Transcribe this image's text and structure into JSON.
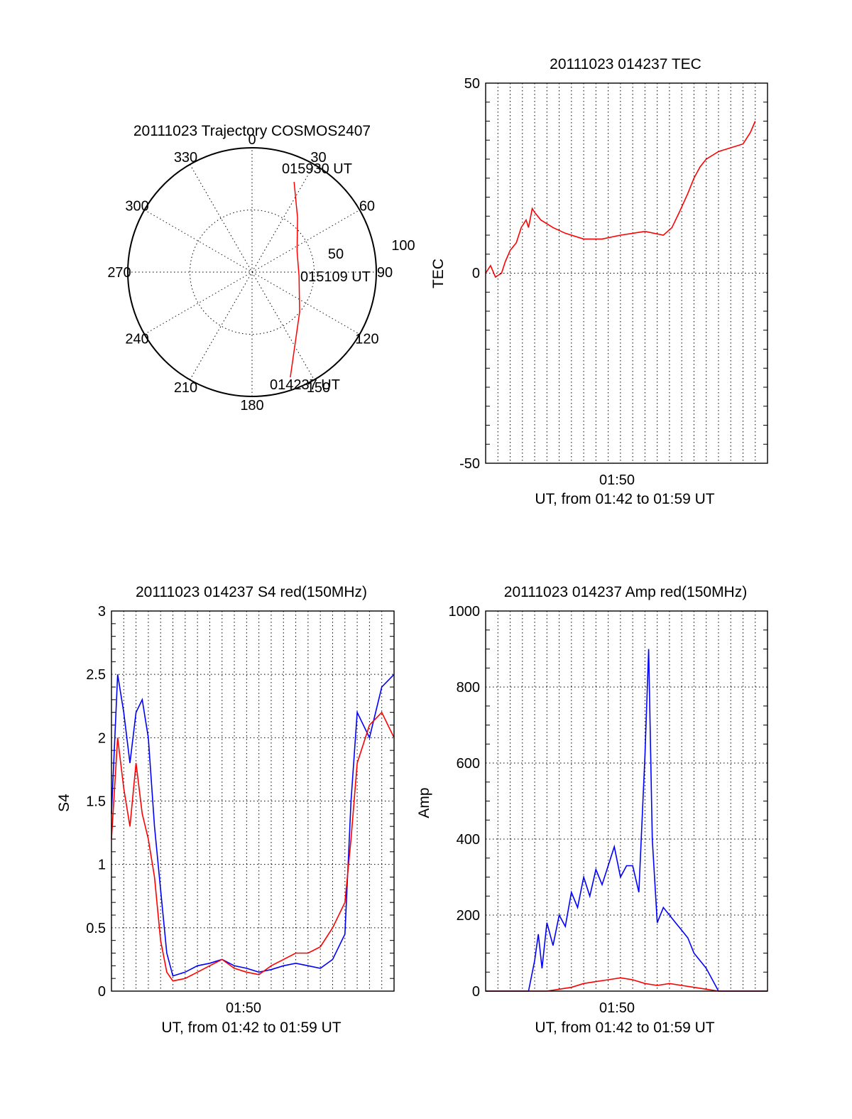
{
  "chart_data": [
    {
      "id": "trajectory",
      "type": "polar",
      "title": "20111023 Trajectory COSMOS2407",
      "angle_labels": [
        "0",
        "30",
        "60",
        "90",
        "120",
        "150",
        "180",
        "210",
        "240",
        "270",
        "300",
        "330"
      ],
      "radius_labels": [
        "50",
        "100"
      ],
      "track": {
        "color": "#ff0000",
        "points": [
          {
            "az": 25,
            "r": 80
          },
          {
            "az": 40,
            "r": 57
          },
          {
            "az": 65,
            "r": 40
          },
          {
            "az": 95,
            "r": 38
          },
          {
            "az": 130,
            "r": 50
          },
          {
            "az": 160,
            "r": 90
          }
        ]
      },
      "annotations": [
        {
          "text": "015930 UT",
          "az": 25,
          "r": 80
        },
        {
          "text": "015109 UT",
          "az": 95,
          "r": 38
        },
        {
          "text": "014237 UT",
          "az": 160,
          "r": 90
        }
      ]
    },
    {
      "id": "tec",
      "type": "line",
      "title": "20111023 014237 TEC",
      "ylabel": "TEC",
      "xlabel": "UT, from 01:42 to 01:59 UT",
      "xtick_labels": [
        "01:50"
      ],
      "ytick_labels": [
        "50",
        "0",
        "-50"
      ],
      "ylim": [
        -50,
        50
      ],
      "grid": true,
      "series": [
        {
          "color": "#ff0000",
          "points": [
            [
              0.0,
              0
            ],
            [
              0.4,
              2
            ],
            [
              0.8,
              -1
            ],
            [
              1.3,
              0
            ],
            [
              1.6,
              3
            ],
            [
              2.0,
              6
            ],
            [
              2.5,
              8
            ],
            [
              2.9,
              12
            ],
            [
              3.3,
              14
            ],
            [
              3.5,
              12
            ],
            [
              3.8,
              17
            ],
            [
              4.0,
              16
            ],
            [
              4.5,
              14
            ],
            [
              5.5,
              12
            ],
            [
              6.5,
              10.5
            ],
            [
              8.0,
              9
            ],
            [
              9.5,
              9
            ],
            [
              11.0,
              10
            ],
            [
              13.0,
              11
            ],
            [
              14.5,
              10
            ],
            [
              15.2,
              12
            ],
            [
              15.8,
              16
            ],
            [
              16.5,
              21
            ],
            [
              17.0,
              25
            ],
            [
              17.5,
              28
            ],
            [
              18.0,
              30
            ],
            [
              19.0,
              32
            ],
            [
              20.0,
              33
            ],
            [
              21.0,
              34
            ],
            [
              21.6,
              37
            ],
            [
              22.0,
              40
            ]
          ]
        }
      ]
    },
    {
      "id": "s4",
      "type": "line",
      "title": "20111023 014237 S4 red(150MHz)",
      "ylabel": "S4",
      "xlabel": "UT, from 01:42 to 01:59 UT",
      "xtick_labels": [
        "01:50"
      ],
      "ytick_labels": [
        "0",
        "0.5",
        "1",
        "1.5",
        "2",
        "2.5",
        "3"
      ],
      "ylim": [
        0,
        3
      ],
      "grid": true,
      "series": [
        {
          "color": "#0000ff",
          "points": [
            [
              0.0,
              1.4
            ],
            [
              0.5,
              2.5
            ],
            [
              1.0,
              2.2
            ],
            [
              1.5,
              1.8
            ],
            [
              2.0,
              2.2
            ],
            [
              2.5,
              2.3
            ],
            [
              3.0,
              2.0
            ],
            [
              3.5,
              1.3
            ],
            [
              4.0,
              0.8
            ],
            [
              4.5,
              0.3
            ],
            [
              5.0,
              0.12
            ],
            [
              6.0,
              0.15
            ],
            [
              7.0,
              0.2
            ],
            [
              8.0,
              0.22
            ],
            [
              9.0,
              0.25
            ],
            [
              10.0,
              0.2
            ],
            [
              11.0,
              0.18
            ],
            [
              12.0,
              0.15
            ],
            [
              13.0,
              0.17
            ],
            [
              14.0,
              0.2
            ],
            [
              15.0,
              0.22
            ],
            [
              16.0,
              0.2
            ],
            [
              17.0,
              0.18
            ],
            [
              18.0,
              0.25
            ],
            [
              19.0,
              0.45
            ],
            [
              19.5,
              1.5
            ],
            [
              20.0,
              2.2
            ],
            [
              21.0,
              2.0
            ],
            [
              22.0,
              2.4
            ],
            [
              23.0,
              2.5
            ]
          ]
        },
        {
          "color": "#ff0000",
          "points": [
            [
              0.0,
              1.2
            ],
            [
              0.5,
              2.0
            ],
            [
              1.0,
              1.6
            ],
            [
              1.5,
              1.3
            ],
            [
              2.0,
              1.8
            ],
            [
              2.5,
              1.4
            ],
            [
              3.0,
              1.2
            ],
            [
              3.5,
              0.9
            ],
            [
              4.0,
              0.4
            ],
            [
              4.5,
              0.15
            ],
            [
              5.0,
              0.08
            ],
            [
              6.0,
              0.1
            ],
            [
              7.0,
              0.15
            ],
            [
              8.0,
              0.2
            ],
            [
              9.0,
              0.25
            ],
            [
              10.0,
              0.18
            ],
            [
              11.0,
              0.15
            ],
            [
              12.0,
              0.13
            ],
            [
              13.0,
              0.2
            ],
            [
              14.0,
              0.25
            ],
            [
              15.0,
              0.3
            ],
            [
              16.0,
              0.3
            ],
            [
              17.0,
              0.35
            ],
            [
              18.0,
              0.5
            ],
            [
              19.0,
              0.7
            ],
            [
              19.5,
              1.2
            ],
            [
              20.0,
              1.8
            ],
            [
              21.0,
              2.1
            ],
            [
              22.0,
              2.2
            ],
            [
              23.0,
              2.0
            ]
          ]
        }
      ]
    },
    {
      "id": "amp",
      "type": "line",
      "title": "20111023 014237 Amp red(150MHz)",
      "ylabel": "Amp",
      "xlabel": "UT, from 01:42 to 01:59 UT",
      "xtick_labels": [
        "01:50"
      ],
      "ytick_labels": [
        "0",
        "200",
        "400",
        "600",
        "800",
        "1000"
      ],
      "ylim": [
        0,
        1000
      ],
      "grid": true,
      "series": [
        {
          "color": "#0000ff",
          "points": [
            [
              0.0,
              0
            ],
            [
              2.0,
              0
            ],
            [
              3.5,
              0
            ],
            [
              4.0,
              80
            ],
            [
              4.3,
              150
            ],
            [
              4.6,
              60
            ],
            [
              5.0,
              180
            ],
            [
              5.5,
              120
            ],
            [
              6.0,
              200
            ],
            [
              6.5,
              170
            ],
            [
              7.0,
              260
            ],
            [
              7.5,
              220
            ],
            [
              8.0,
              300
            ],
            [
              8.5,
              250
            ],
            [
              9.0,
              320
            ],
            [
              9.5,
              280
            ],
            [
              10.0,
              330
            ],
            [
              10.5,
              380
            ],
            [
              11.0,
              300
            ],
            [
              11.5,
              330
            ],
            [
              12.0,
              330
            ],
            [
              12.5,
              260
            ],
            [
              13.0,
              620
            ],
            [
              13.3,
              900
            ],
            [
              13.6,
              400
            ],
            [
              14.0,
              180
            ],
            [
              14.5,
              220
            ],
            [
              15.0,
              200
            ],
            [
              15.5,
              180
            ],
            [
              16.0,
              160
            ],
            [
              16.5,
              140
            ],
            [
              17.0,
              100
            ],
            [
              17.5,
              80
            ],
            [
              18.0,
              60
            ],
            [
              19.0,
              0
            ],
            [
              23.0,
              0
            ]
          ]
        },
        {
          "color": "#ff0000",
          "points": [
            [
              0.0,
              0
            ],
            [
              5.0,
              0
            ],
            [
              6.0,
              5
            ],
            [
              7.0,
              10
            ],
            [
              8.0,
              20
            ],
            [
              9.0,
              25
            ],
            [
              10.0,
              30
            ],
            [
              11.0,
              35
            ],
            [
              12.0,
              30
            ],
            [
              13.0,
              20
            ],
            [
              14.0,
              15
            ],
            [
              15.0,
              20
            ],
            [
              16.0,
              15
            ],
            [
              17.0,
              10
            ],
            [
              18.0,
              5
            ],
            [
              19.0,
              0
            ],
            [
              23.0,
              0
            ]
          ]
        }
      ]
    }
  ]
}
